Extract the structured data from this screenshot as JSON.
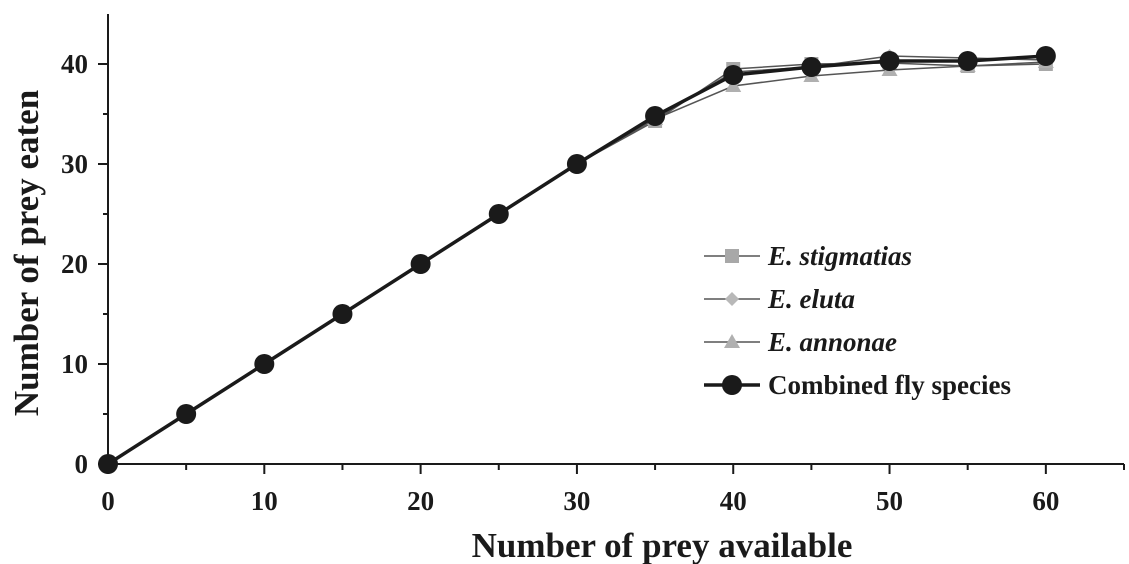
{
  "chart_data": {
    "type": "line",
    "title": "",
    "xlabel": "Number of prey available",
    "ylabel": "Number of prey eaten",
    "xlim": [
      0,
      65
    ],
    "ylim": [
      0,
      45
    ],
    "xticks": [
      0,
      10,
      20,
      30,
      40,
      50,
      60
    ],
    "yticks": [
      0,
      10,
      20,
      30,
      40
    ],
    "grid": false,
    "legend_position": "right-middle",
    "x": [
      0,
      5,
      10,
      15,
      20,
      25,
      30,
      35,
      40,
      45,
      50,
      55,
      60
    ],
    "series": [
      {
        "name": "E. stigmatias",
        "marker": "square",
        "color": "#a8a8a8",
        "line_color": "#555555",
        "values": [
          0,
          5,
          10,
          15,
          20,
          25,
          30,
          34.3,
          39.5,
          40,
          40.1,
          39.8,
          40
        ]
      },
      {
        "name": "E. eluta",
        "marker": "diamond",
        "color": "#b8b8b8",
        "line_color": "#555555",
        "values": [
          0,
          5,
          10,
          15,
          20,
          25,
          30,
          34.5,
          39.2,
          39.7,
          40.8,
          40.6,
          40.4
        ]
      },
      {
        "name": "E. annonae",
        "marker": "triangle",
        "color": "#b0b0b0",
        "line_color": "#555555",
        "values": [
          0,
          5,
          10,
          15,
          20,
          25,
          30,
          34.5,
          37.8,
          38.8,
          39.4,
          39.8,
          40.2
        ]
      },
      {
        "name": "Combined fly species",
        "marker": "circle",
        "color": "#1a1a1a",
        "line_color": "#1a1a1a",
        "values": [
          0,
          5,
          10,
          15,
          20,
          25,
          30,
          34.8,
          38.9,
          39.7,
          40.3,
          40.3,
          40.8
        ]
      }
    ]
  }
}
